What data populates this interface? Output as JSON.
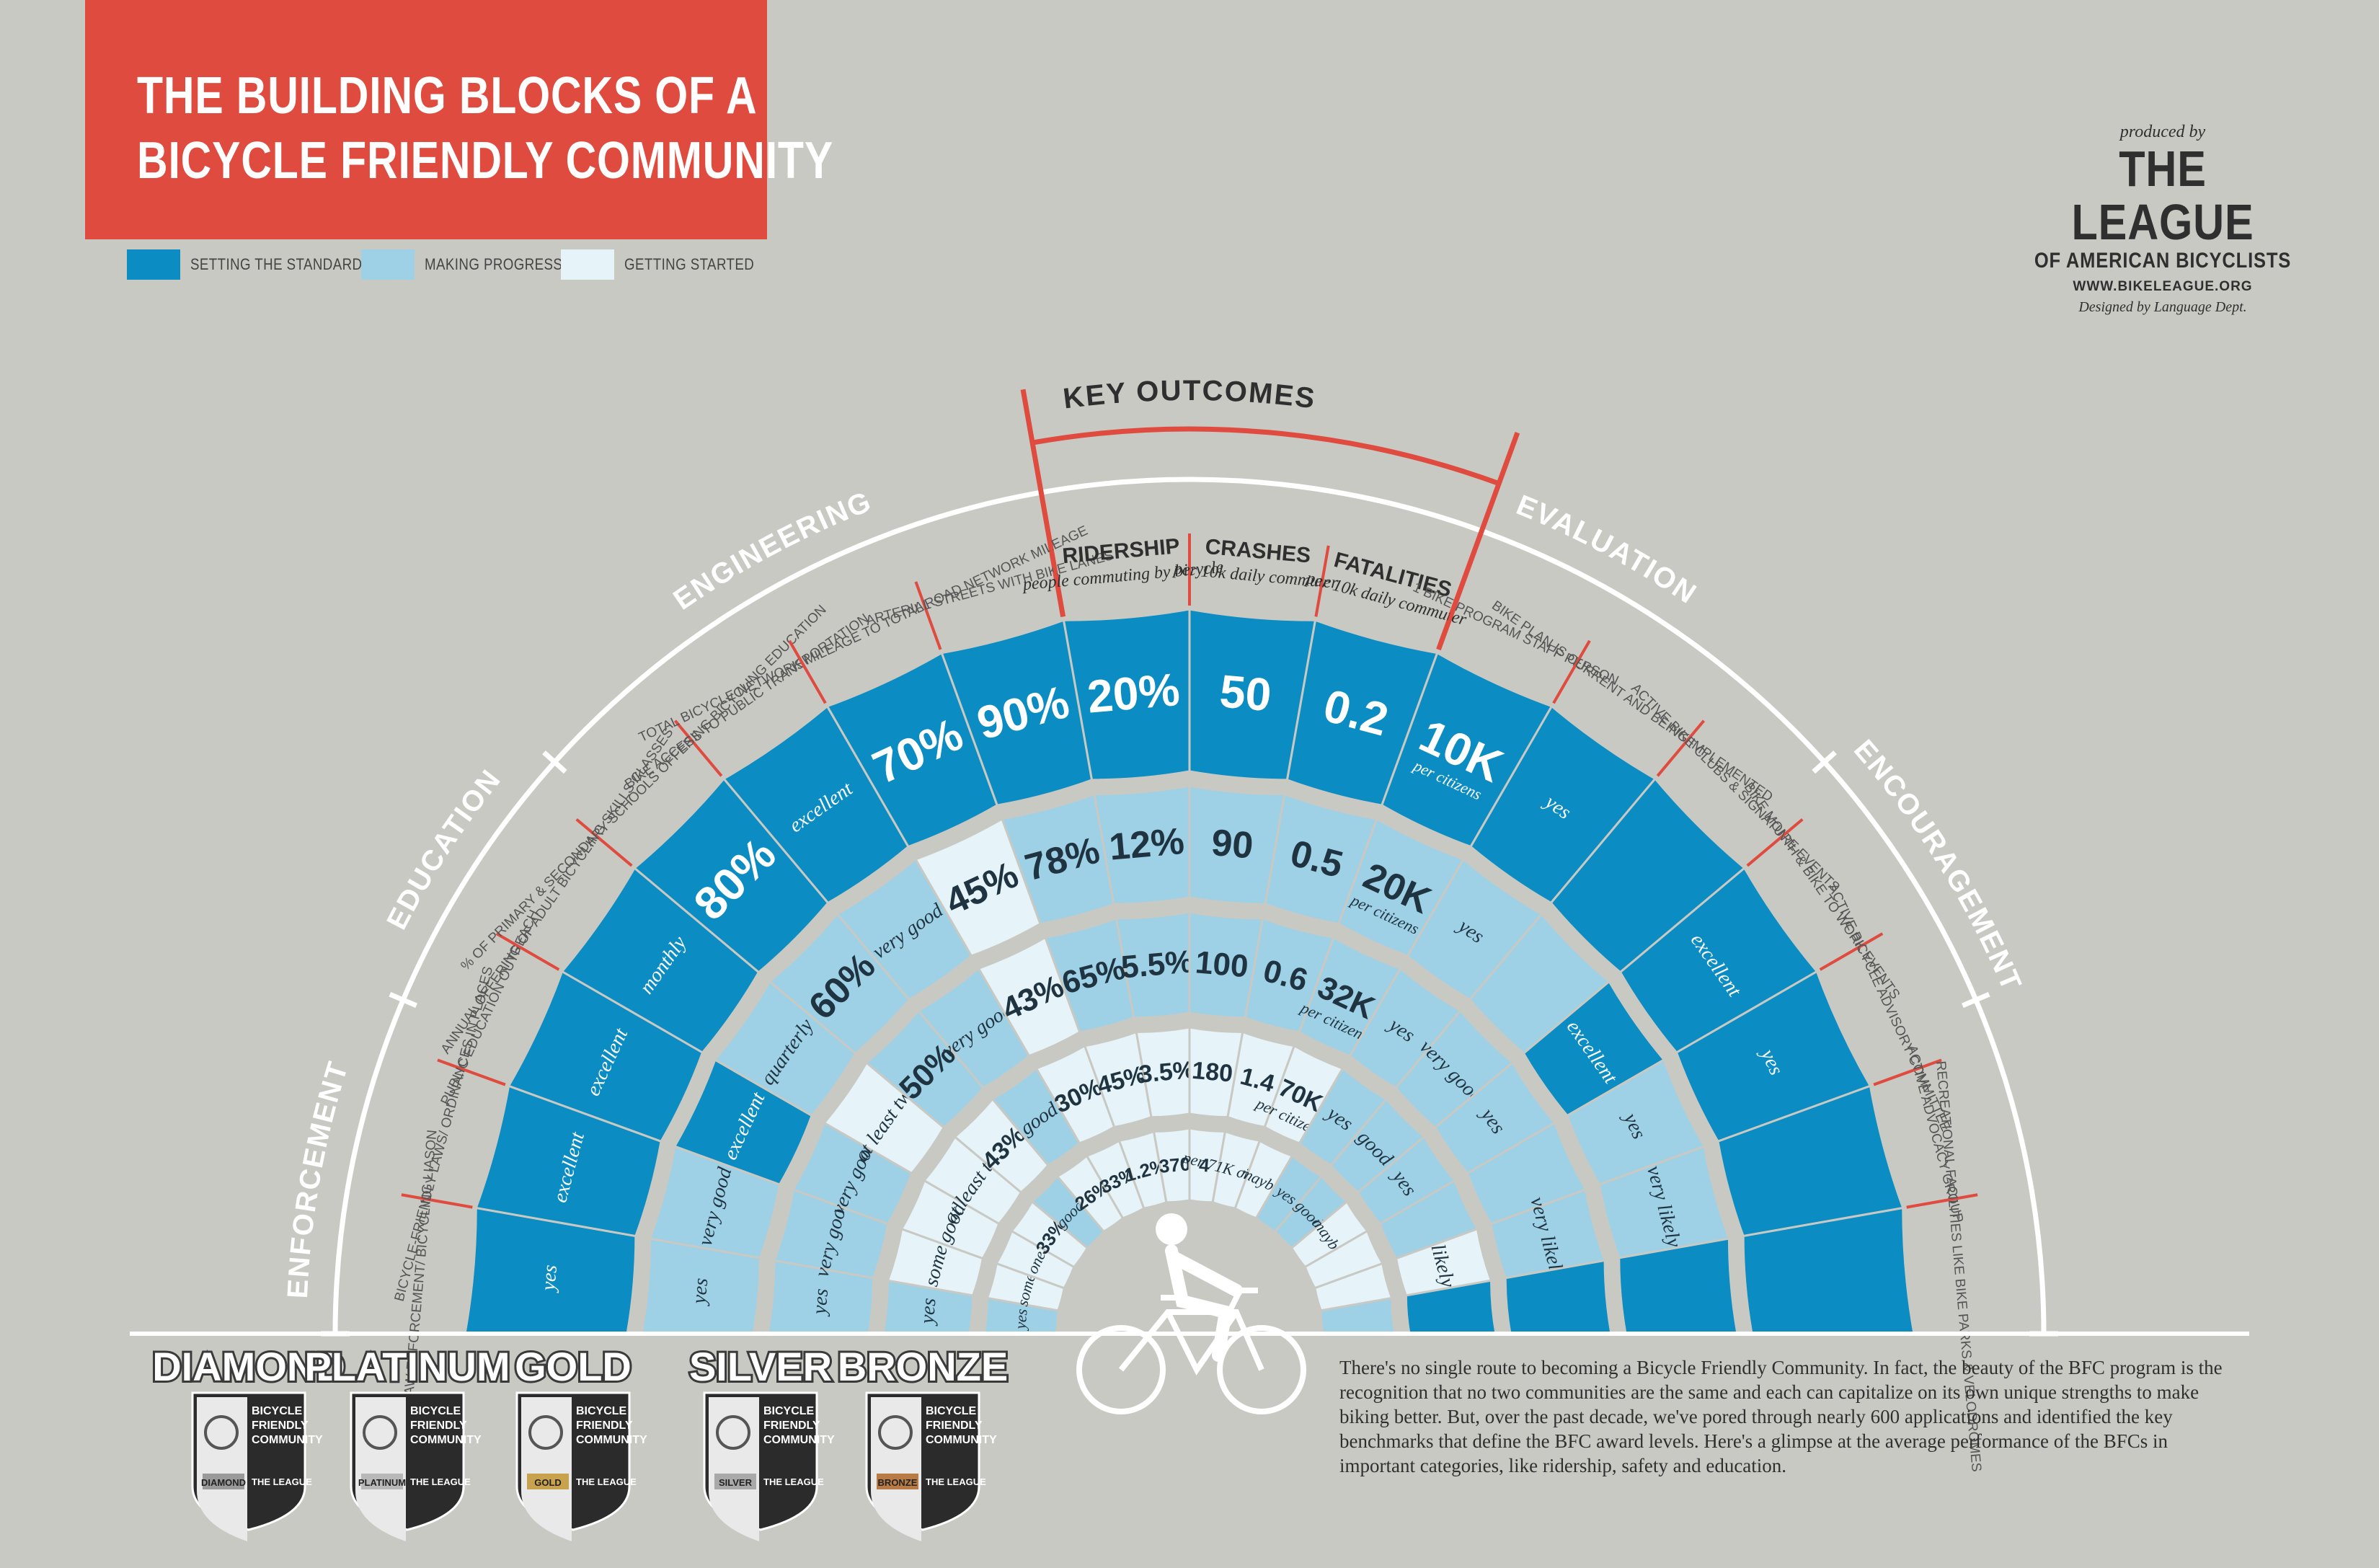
{
  "title": {
    "line1": "THE BUILDING BLOCKS OF A",
    "line2": "BICYCLE FRIENDLY COMMUNITY"
  },
  "legend": [
    {
      "label": "SETTING THE STANDARD",
      "color": "#0b8cc2"
    },
    {
      "label": "MAKING PROGRESS",
      "color": "#9ed0e6"
    },
    {
      "label": "GETTING STARTED",
      "color": "#e6f3f9"
    }
  ],
  "credits": {
    "produced_by": "produced by",
    "league": "THE LEAGUE",
    "of_american": "OF AMERICAN BICYCLISTS",
    "url": "WWW.BIKELEAGUE.ORG",
    "designed_by": "Designed by Language Dept."
  },
  "key_outcomes_label": "KEY OUTCOMES",
  "sections": [
    "ENFORCEMENT",
    "EDUCATION",
    "ENGINEERING",
    "EVALUATION",
    "ENCOURAGEMENT"
  ],
  "levels": [
    {
      "name": "DIAMOND",
      "badge": "DIAMOND",
      "color": "#9a9a9a"
    },
    {
      "name": "PLATINUM",
      "badge": "PLATINUM",
      "color": "#b8b8b8"
    },
    {
      "name": "GOLD",
      "badge": "GOLD",
      "color": "#c9a24e"
    },
    {
      "name": "SILVER",
      "badge": "SILVER",
      "color": "#a9a9a9"
    },
    {
      "name": "BRONZE",
      "badge": "BRONZE",
      "color": "#b87b45"
    }
  ],
  "badge_text": {
    "line1": "BICYCLE",
    "line2": "FRIENDLY",
    "line3": "COMMUNITY",
    "org": "THE LEAGUE"
  },
  "categories": [
    {
      "label": "LAW ENFORCEMENT/ BICYCLING LIASON"
    },
    {
      "label": "BICYCLE-FRIENDLY LAWS/ ORDINANCES IN PLACES"
    },
    {
      "label": "PUBLIC EDUCATION OUTREACH"
    },
    {
      "label": "ANNUAL OFFERING OF ADULT BICYCLING SKILLS CLASSES"
    },
    {
      "label": "% OF PRIMARY & SECONDARY SCHOOLS OFFERING BICYCLING EDUCATION"
    },
    {
      "label": "BIKE ACCESS TO PUBLIC TRANSPORTATION"
    },
    {
      "label": "TOTAL BICYCLE NETWORK MILEAGE TO TOTAL ROAD NETWORK MILEAGE"
    },
    {
      "label": "ARTERIAL STREETS WITH BIKE LANES"
    },
    {
      "label": "RIDERSHIP",
      "sub": "people commuting by bicycle"
    },
    {
      "label": "CRASHES",
      "sub": "per 10k daily commuter"
    },
    {
      "label": "FATALITIES",
      "sub": "per 10k daily commuter"
    },
    {
      "label": "1 BIKE PROGRAM STAFF PERSON"
    },
    {
      "label": "BIKE PLAN IS CURRENT AND BEING IMPLEMENTED"
    },
    {
      "label": "ACTIVE BIKE CLUBS & SIGNATURE EVENTS"
    },
    {
      "label": "BIKE MONTH & BIKE TO WORK EVENTS"
    },
    {
      "label": "ACTIVE BICYCLE ADVISORY COMMITTEE"
    },
    {
      "label": "ACTIVE ADVOCACY GROUP"
    },
    {
      "label": "RECREATIONAL FACILITIES LIKE BIKE PARKS & VELODROMES"
    }
  ],
  "rings": [
    {
      "level": "DIAMOND",
      "cells": [
        {
          "v": "yes",
          "s": 0
        },
        {
          "v": "excellent",
          "s": 0
        },
        {
          "v": "excellent",
          "s": 0
        },
        {
          "v": "monthly",
          "s": 0
        },
        {
          "v": "80%",
          "s": 0
        },
        {
          "v": "excellent",
          "s": 0
        },
        {
          "v": "70%",
          "s": 0
        },
        {
          "v": "90%",
          "s": 0
        },
        {
          "v": "20%",
          "s": 0
        },
        {
          "v": "50",
          "s": 0
        },
        {
          "v": "0.2",
          "s": 0
        },
        {
          "v": "10K",
          "sub": "per citizens",
          "s": 0
        },
        {
          "v": "yes",
          "s": 0
        },
        {
          "v": "",
          "s": 0
        },
        {
          "v": "excellent",
          "s": 0
        },
        {
          "v": "yes",
          "s": 0
        },
        {
          "v": "",
          "s": 0
        },
        {
          "v": "",
          "s": 0
        }
      ]
    },
    {
      "level": "PLATINUM",
      "cells": [
        {
          "v": "yes",
          "s": 1
        },
        {
          "v": "very good",
          "s": 1
        },
        {
          "v": "excellent",
          "s": 0
        },
        {
          "v": "quarterly",
          "s": 1
        },
        {
          "v": "60%",
          "s": 1
        },
        {
          "v": "very good",
          "s": 1
        },
        {
          "v": "45%",
          "s": 2
        },
        {
          "v": "78%",
          "s": 1
        },
        {
          "v": "12%",
          "s": 1
        },
        {
          "v": "90",
          "s": 1
        },
        {
          "v": "0.5",
          "s": 1
        },
        {
          "v": "20K",
          "sub": "per citizens",
          "s": 1
        },
        {
          "v": "yes",
          "s": 1
        },
        {
          "v": "",
          "s": 1
        },
        {
          "v": "excellent",
          "s": 0
        },
        {
          "v": "yes",
          "s": 1
        },
        {
          "v": "very likely",
          "s": 1
        },
        {
          "v": "",
          "s": 0
        }
      ]
    },
    {
      "level": "GOLD",
      "cells": [
        {
          "v": "yes",
          "s": 1
        },
        {
          "v": "very good",
          "s": 1
        },
        {
          "v": "very good",
          "s": 1
        },
        {
          "v": "at least two",
          "s": 2
        },
        {
          "v": "50%",
          "s": 1
        },
        {
          "v": "very good",
          "s": 1
        },
        {
          "v": "43%",
          "s": 2
        },
        {
          "v": "65%",
          "s": 1
        },
        {
          "v": "5.5%",
          "s": 1
        },
        {
          "v": "100",
          "s": 1
        },
        {
          "v": "0.6",
          "s": 1
        },
        {
          "v": "32K",
          "sub": "per citizens",
          "s": 1
        },
        {
          "v": "yes",
          "s": 1
        },
        {
          "v": "very good",
          "s": 1
        },
        {
          "v": "yes",
          "s": 1
        },
        {
          "v": "",
          "s": 1
        },
        {
          "v": "very likely",
          "s": 1
        },
        {
          "v": "",
          "s": 0
        }
      ]
    },
    {
      "level": "SILVER",
      "cells": [
        {
          "v": "yes",
          "s": 1
        },
        {
          "v": "some",
          "s": 2
        },
        {
          "v": "good",
          "s": 2
        },
        {
          "v": "at least two",
          "s": 2
        },
        {
          "v": "43%",
          "s": 2
        },
        {
          "v": "good",
          "s": 1
        },
        {
          "v": "30%",
          "s": 2
        },
        {
          "v": "45%",
          "s": 2
        },
        {
          "v": "3.5%",
          "s": 2
        },
        {
          "v": "180",
          "s": 2
        },
        {
          "v": "1.4",
          "s": 2
        },
        {
          "v": "70K",
          "sub": "per citizens",
          "s": 2
        },
        {
          "v": "yes",
          "s": 1
        },
        {
          "v": "good",
          "s": 1
        },
        {
          "v": "yes",
          "s": 1
        },
        {
          "v": "",
          "s": 1
        },
        {
          "v": "likely",
          "s": 2
        },
        {
          "v": "",
          "s": 0
        }
      ]
    },
    {
      "level": "BRONZE",
      "cells": [
        {
          "v": "yes",
          "s": 1
        },
        {
          "v": "some",
          "s": 2
        },
        {
          "v": "one",
          "s": 2
        },
        {
          "v": "33%",
          "s": 2
        },
        {
          "v": "good",
          "s": 1
        },
        {
          "v": "26%",
          "s": 2
        },
        {
          "v": "33%",
          "s": 2
        },
        {
          "v": "1.2%",
          "s": 2
        },
        {
          "v": "370",
          "s": 2
        },
        {
          "v": "4",
          "s": 2
        },
        {
          "v": "per 71K citizens",
          "s": 2
        },
        {
          "v": "maybe",
          "s": 2
        },
        {
          "v": "yes",
          "s": 1
        },
        {
          "v": "good",
          "s": 1
        },
        {
          "v": "maybe",
          "s": 2
        },
        {
          "v": "",
          "s": 2
        },
        {
          "v": "",
          "s": 2
        },
        {
          "v": "",
          "s": 1
        }
      ]
    }
  ],
  "description": "There's no single route to becoming a Bicycle Friendly Community. In fact, the beauty of the BFC program is the recognition that no two communities are the same and each can capitalize on its own unique strengths to make biking better. But, over the past decade, we've pored through nearly 600 applications and identified the key benchmarks that define the BFC award levels. Here's a glimpse at the average performance of the BFCs in important categories, like ridership, safety and education."
}
